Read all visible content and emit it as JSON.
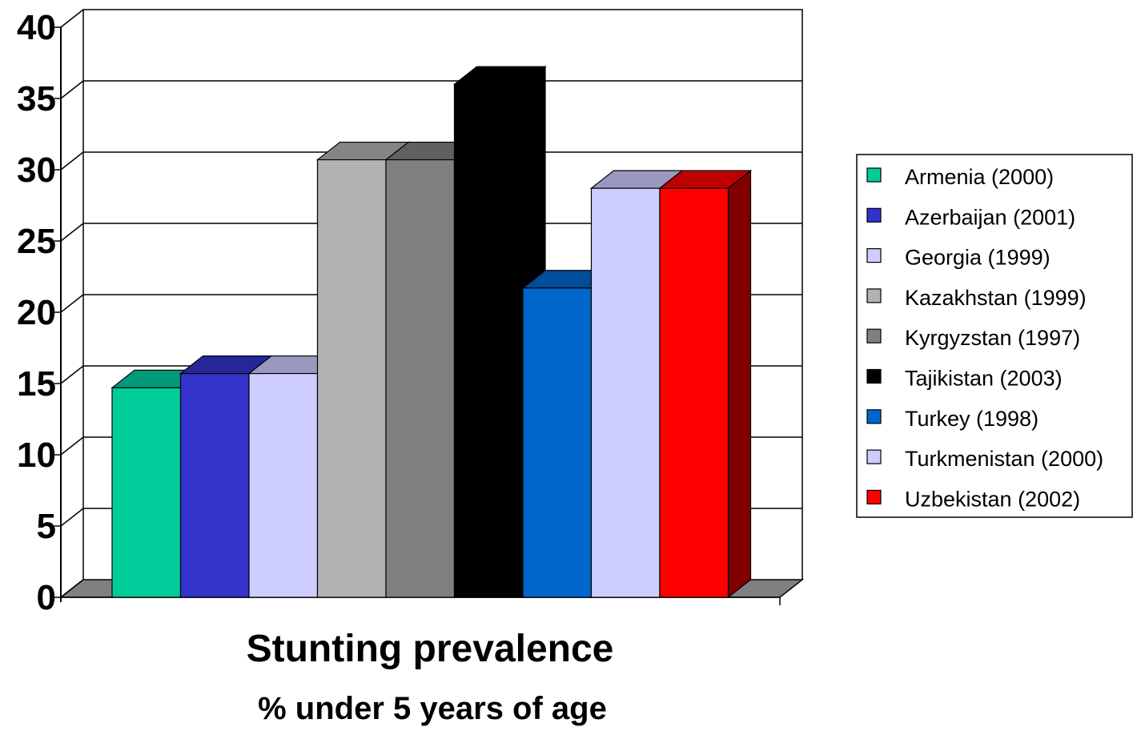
{
  "chart_data": {
    "type": "bar",
    "title": "",
    "xlabel": "Stunting prevalence",
    "subtitle": "% under 5 years of age",
    "ylabel": "",
    "ylim": [
      0,
      40
    ],
    "yticks": [
      "0",
      "5",
      "10",
      "15",
      "20",
      "25",
      "30",
      "35",
      "40"
    ],
    "grid": true,
    "legend_position": "right",
    "series": [
      {
        "name": "Armenia (2000)",
        "value": 14.7,
        "color": "#00CC99",
        "top_color": "#00997A",
        "side_color": "#009973"
      },
      {
        "name": "Azerbaijan (2001)",
        "value": 15.7,
        "color": "#3333CC",
        "top_color": "#262699",
        "side_color": "#262699"
      },
      {
        "name": "Georgia (1999)",
        "value": 15.7,
        "color": "#CCCCFF",
        "top_color": "#9999BF",
        "side_color": "#9999BF"
      },
      {
        "name": "Kazakhstan (1999)",
        "value": 30.7,
        "color": "#B2B2B2",
        "top_color": "#858585",
        "side_color": "#858585"
      },
      {
        "name": "Kyrgyzstan (1997)",
        "value": 30.7,
        "color": "#808080",
        "top_color": "#606060",
        "side_color": "#606060"
      },
      {
        "name": "Tajikistan (2003)",
        "value": 36.0,
        "color": "#000000",
        "top_color": "#000000",
        "side_color": "#000000"
      },
      {
        "name": "Turkey (1998)",
        "value": 21.7,
        "color": "#0066CC",
        "top_color": "#004D99",
        "side_color": "#004D99"
      },
      {
        "name": "Turkmenistan (2000)",
        "value": 28.7,
        "color": "#CCCCFF",
        "top_color": "#9999BF",
        "side_color": "#9999BF"
      },
      {
        "name": "Uzbekistan (2002)",
        "value": 28.7,
        "color": "#FF0000",
        "top_color": "#BF0000",
        "side_color": "#800000"
      }
    ],
    "floor_color": "#808080",
    "grid_color": "#000000"
  }
}
